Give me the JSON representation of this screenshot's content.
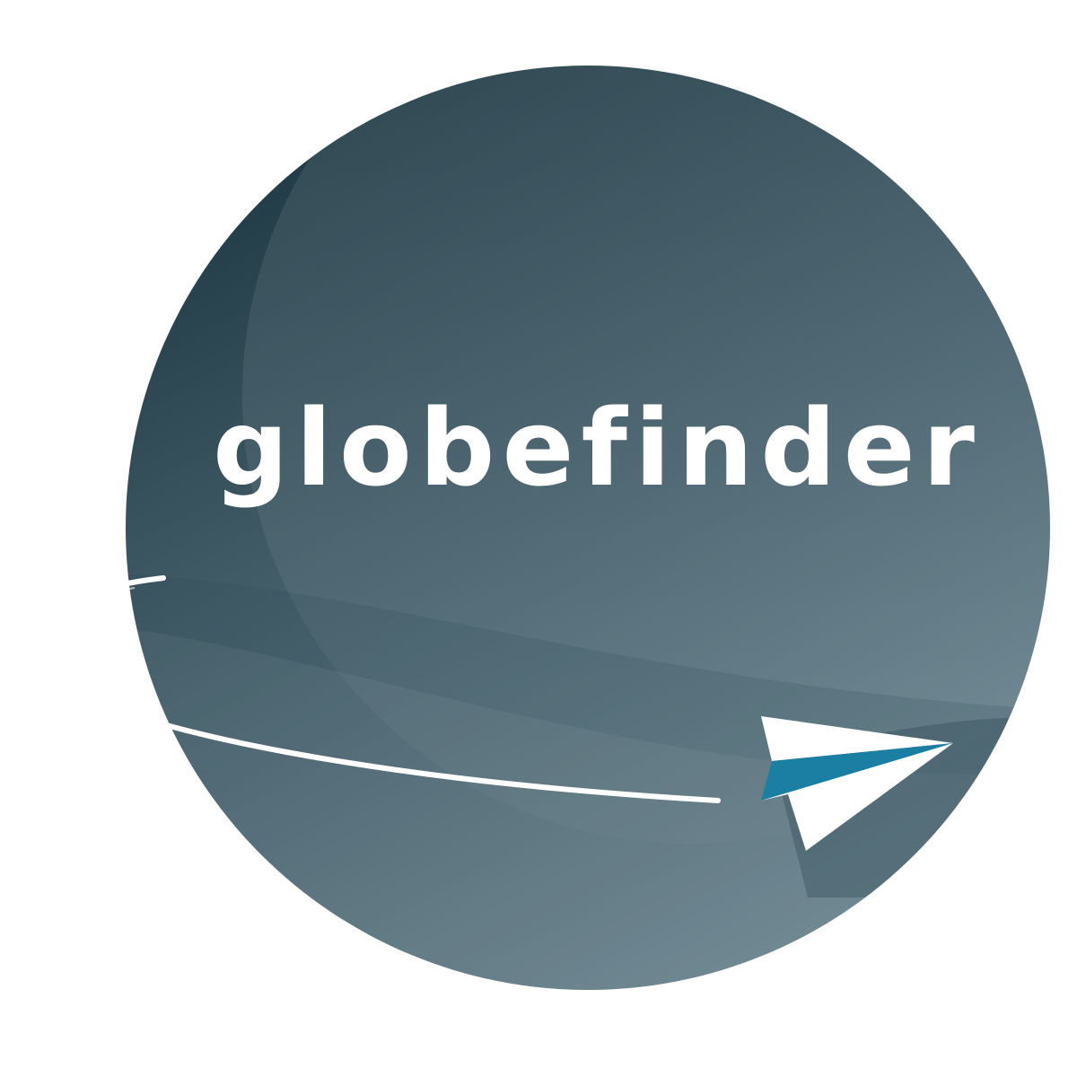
{
  "logo": {
    "wordmark": "globefinder",
    "globe_icon": "globe-icon",
    "plane_icon": "paper-plane-icon"
  },
  "colors": {
    "background": "#ffffff",
    "globe_dark": "#1d3742",
    "globe_mid": "#4a6470",
    "globe_light": "#7c949e",
    "plane_white": "#ffffff",
    "plane_accent": "#1a7fa3",
    "wordmark": "#ffffff"
  }
}
